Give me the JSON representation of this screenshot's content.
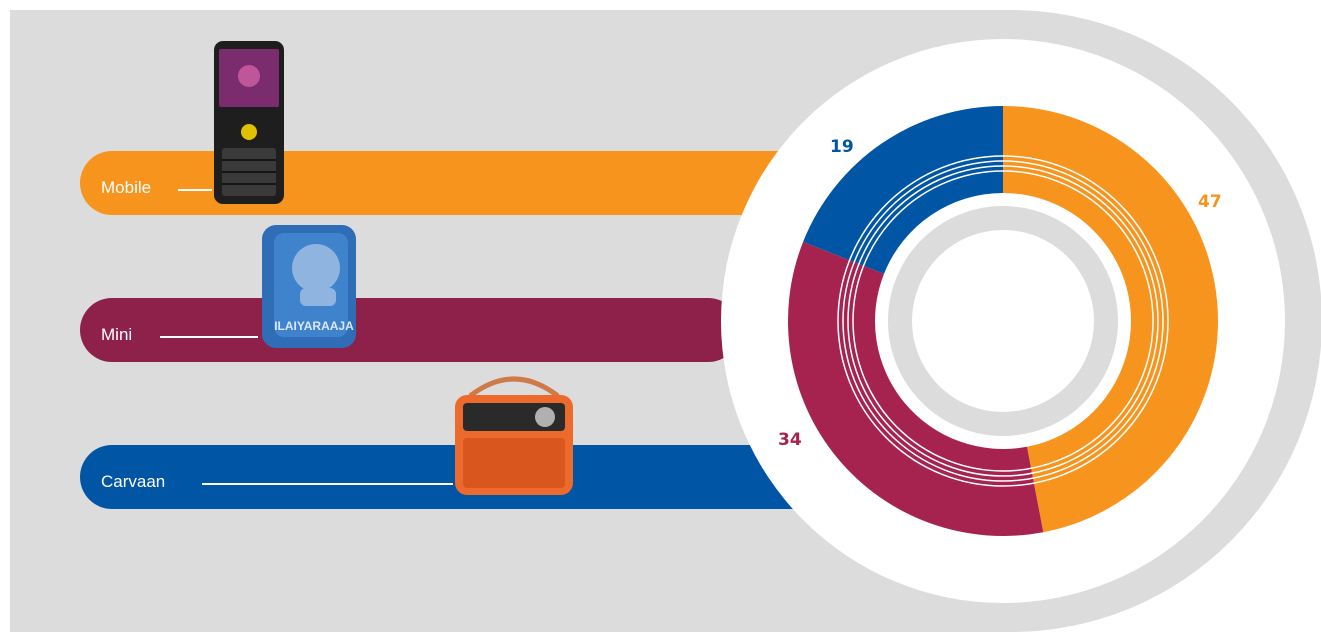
{
  "colors": {
    "background_panel": "#dcdcdd",
    "mobile": "#f7941d",
    "mini": "#a6234f",
    "carvaan": "#0055a4"
  },
  "chart_data": {
    "type": "pie",
    "variant": "donut",
    "categories": [
      "Mobile",
      "Mini",
      "Carvaan"
    ],
    "values": [
      47,
      34,
      19
    ],
    "value_labels": [
      "47",
      "34",
      "19"
    ],
    "slice_colors": [
      "#f7941d",
      "#a6234f",
      "#0055a4"
    ]
  },
  "legend": {
    "items": [
      {
        "label": "Mobile",
        "icon": "feature-phone-image"
      },
      {
        "label": "Mini",
        "icon": "ilaiyaraaja-speaker-image"
      },
      {
        "label": "Carvaan",
        "icon": "retro-radio-image"
      }
    ],
    "speaker_brand_text": "ILAIYARAAJA"
  }
}
